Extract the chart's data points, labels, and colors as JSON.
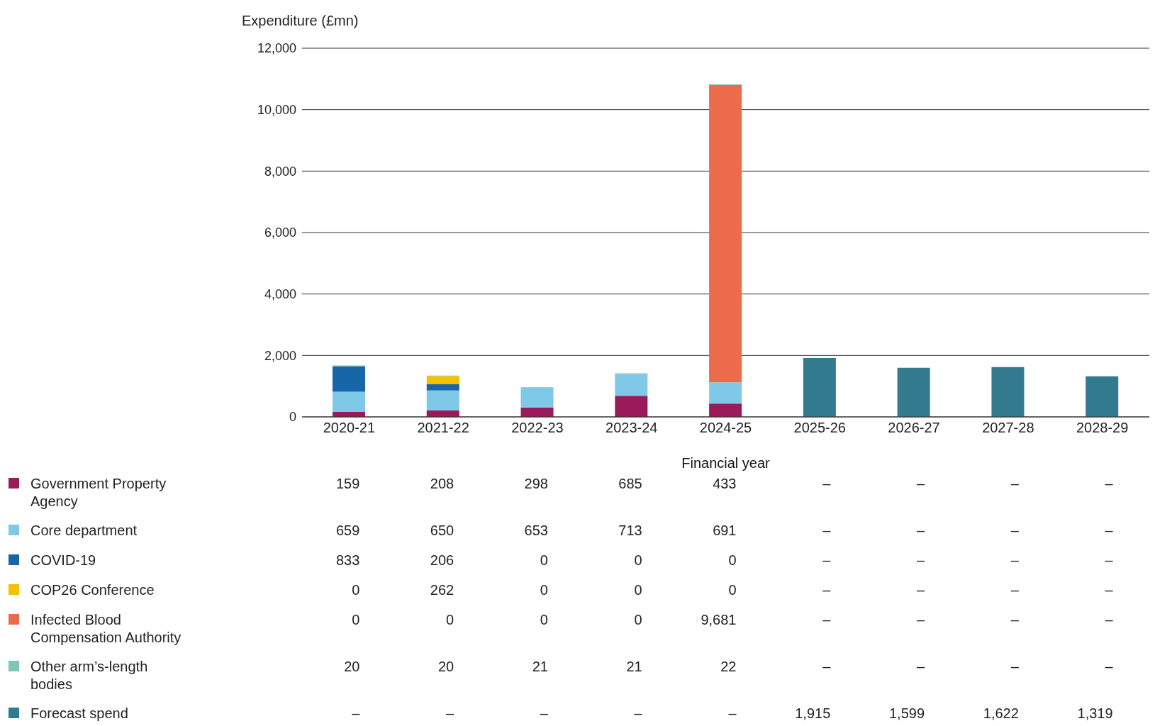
{
  "chart_data": {
    "type": "bar",
    "stacked": true,
    "xlabel": "Financial year",
    "ylabel": "Expenditure (£mn)",
    "categories": [
      "2020-21",
      "2021-22",
      "2022-23",
      "2023-24",
      "2024-25",
      "2025-26",
      "2026-27",
      "2027-28",
      "2028-29"
    ],
    "series": [
      {
        "name": "Government Property Agency",
        "color": "#9b1b5a",
        "values": [
          159,
          208,
          298,
          685,
          433,
          null,
          null,
          null,
          null
        ],
        "value_labels": [
          "159",
          "208",
          "298",
          "685",
          "433",
          "–",
          "–",
          "–",
          "–"
        ]
      },
      {
        "name": "Core department",
        "color": "#80c8e8",
        "values": [
          659,
          650,
          653,
          713,
          691,
          null,
          null,
          null,
          null
        ],
        "value_labels": [
          "659",
          "650",
          "653",
          "713",
          "691",
          "–",
          "–",
          "–",
          "–"
        ]
      },
      {
        "name": "COVID-19",
        "color": "#1766a8",
        "values": [
          833,
          206,
          0,
          0,
          0,
          null,
          null,
          null,
          null
        ],
        "value_labels": [
          "833",
          "206",
          "0",
          "0",
          "0",
          "–",
          "–",
          "–",
          "–"
        ]
      },
      {
        "name": "COP26 Conference",
        "color": "#f5c000",
        "values": [
          0,
          262,
          0,
          0,
          0,
          null,
          null,
          null,
          null
        ],
        "value_labels": [
          "0",
          "262",
          "0",
          "0",
          "0",
          "–",
          "–",
          "–",
          "–"
        ]
      },
      {
        "name": "Infected Blood Compensation Authority",
        "color": "#ec6b4d",
        "values": [
          0,
          0,
          0,
          0,
          9681,
          null,
          null,
          null,
          null
        ],
        "value_labels": [
          "0",
          "0",
          "0",
          "0",
          "9,681",
          "–",
          "–",
          "–",
          "–"
        ]
      },
      {
        "name": "Other arm’s-length bodies",
        "color": "#7cc8b5",
        "values": [
          20,
          20,
          21,
          21,
          22,
          null,
          null,
          null,
          null
        ],
        "value_labels": [
          "20",
          "20",
          "21",
          "21",
          "22",
          "–",
          "–",
          "–",
          "–"
        ]
      },
      {
        "name": "Forecast spend",
        "color": "#327a8e",
        "values": [
          null,
          null,
          null,
          null,
          null,
          1915,
          1599,
          1622,
          1319
        ],
        "value_labels": [
          "–",
          "–",
          "–",
          "–",
          "–",
          "1,915",
          "1,599",
          "1,622",
          "1,319"
        ]
      }
    ],
    "ylim": [
      0,
      12000
    ],
    "yticks": [
      0,
      {
        "value": 2000,
        "label": "2,000"
      },
      {
        "value": 4000,
        "label": "4,000"
      },
      {
        "value": 6000,
        "label": "6,000"
      },
      {
        "value": 8000,
        "label": "8,000"
      },
      {
        "value": 10000,
        "label": "10,000"
      },
      {
        "value": 12000,
        "label": "12,000"
      }
    ],
    "grid": "y",
    "legend": "bottom left"
  }
}
